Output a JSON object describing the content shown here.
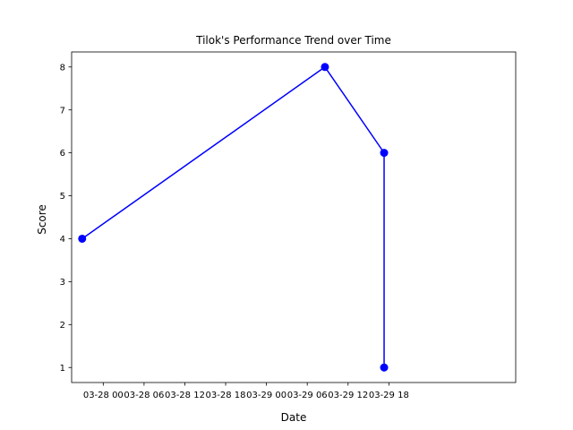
{
  "chart_data": {
    "type": "line",
    "title": "Tilok's Performance Trend over Time",
    "xlabel": "Date",
    "ylabel": "Score",
    "ylim": [
      0.65,
      8.35
    ],
    "xlim_hours": [
      -4.65,
      60.65
    ],
    "x_tick_hours": [
      0,
      6,
      12,
      18,
      24,
      30,
      36,
      42
    ],
    "x_tick_labels": [
      "03-28 00",
      "03-28 06",
      "03-28 12",
      "03-28 18",
      "03-29 00",
      "03-29 06",
      "03-29 12",
      "03-29 18"
    ],
    "y_ticks": [
      1,
      2,
      3,
      4,
      5,
      6,
      7,
      8
    ],
    "series": [
      {
        "name": "Tilok",
        "color": "#0000ff",
        "marker": "circle",
        "points": [
          {
            "hours_from_0328_00": -3.1,
            "y": 4
          },
          {
            "hours_from_0328_00": 32.6,
            "y": 8
          },
          {
            "hours_from_0328_00": 41.3,
            "y": 6
          },
          {
            "hours_from_0328_00": 41.3,
            "y": 1
          }
        ]
      }
    ]
  }
}
